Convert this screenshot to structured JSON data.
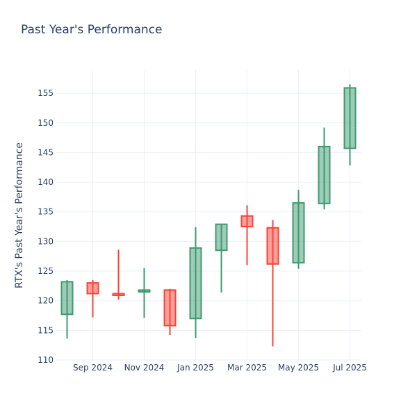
{
  "chart_data": {
    "type": "candlestick",
    "title": "Past Year's Performance",
    "ylabel": "RTX's Past Year's Performance",
    "xlabel": "",
    "ylim": [
      110,
      159
    ],
    "y_ticks": [
      110,
      115,
      120,
      125,
      130,
      135,
      140,
      145,
      150,
      155
    ],
    "x_ticks": [
      {
        "label": "Sep 2024",
        "at": "2024-09"
      },
      {
        "label": "Nov 2024",
        "at": "2024-11"
      },
      {
        "label": "Jan 2025",
        "at": "2025-01"
      },
      {
        "label": "Mar 2025",
        "at": "2025-03"
      },
      {
        "label": "May 2025",
        "at": "2025-05"
      },
      {
        "label": "Jul 2025",
        "at": "2025-07"
      }
    ],
    "grid": true,
    "colors": {
      "increasing": "#3d9970",
      "decreasing": "#ff4136"
    },
    "candles": [
      {
        "period": "2024-08",
        "open": 117.7,
        "high": 123.5,
        "low": 113.6,
        "close": 123.2
      },
      {
        "period": "2024-09",
        "open": 123.0,
        "high": 123.5,
        "low": 117.2,
        "close": 121.2
      },
      {
        "period": "2024-10",
        "open": 121.2,
        "high": 128.6,
        "low": 120.2,
        "close": 120.9
      },
      {
        "period": "2024-11",
        "open": 121.5,
        "high": 125.5,
        "low": 117.1,
        "close": 121.8
      },
      {
        "period": "2024-12",
        "open": 121.8,
        "high": 122.0,
        "low": 114.2,
        "close": 115.8
      },
      {
        "period": "2025-01",
        "open": 117.0,
        "high": 132.4,
        "low": 113.7,
        "close": 128.9
      },
      {
        "period": "2025-02",
        "open": 128.5,
        "high": 133.0,
        "low": 121.4,
        "close": 132.9
      },
      {
        "period": "2025-03",
        "open": 134.3,
        "high": 136.1,
        "low": 126.0,
        "close": 132.5
      },
      {
        "period": "2025-04",
        "open": 132.3,
        "high": 133.6,
        "low": 112.3,
        "close": 126.2
      },
      {
        "period": "2025-05",
        "open": 126.4,
        "high": 138.7,
        "low": 125.4,
        "close": 136.5
      },
      {
        "period": "2025-06",
        "open": 136.4,
        "high": 149.2,
        "low": 135.4,
        "close": 146.0
      },
      {
        "period": "2025-07",
        "open": 145.7,
        "high": 156.5,
        "low": 142.8,
        "close": 155.9
      }
    ]
  }
}
